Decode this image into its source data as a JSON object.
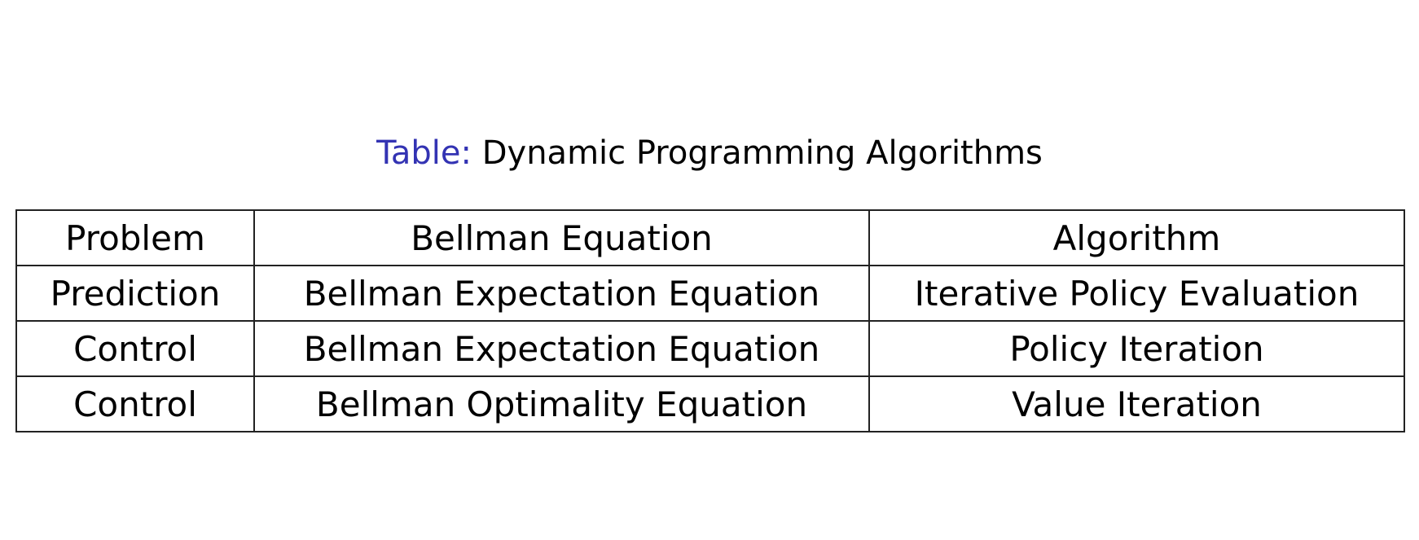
{
  "caption": {
    "label": "Table:",
    "text": "Dynamic Programming Algorithms",
    "label_color": "#3333b3"
  },
  "table": {
    "headers": [
      "Problem",
      "Bellman Equation",
      "Algorithm"
    ],
    "rows": [
      [
        "Prediction",
        "Bellman Expectation Equation",
        "Iterative Policy Evaluation"
      ],
      [
        "Control",
        "Bellman Expectation Equation",
        "Policy Iteration"
      ],
      [
        "Control",
        "Bellman Optimality Equation",
        "Value Iteration"
      ]
    ]
  }
}
